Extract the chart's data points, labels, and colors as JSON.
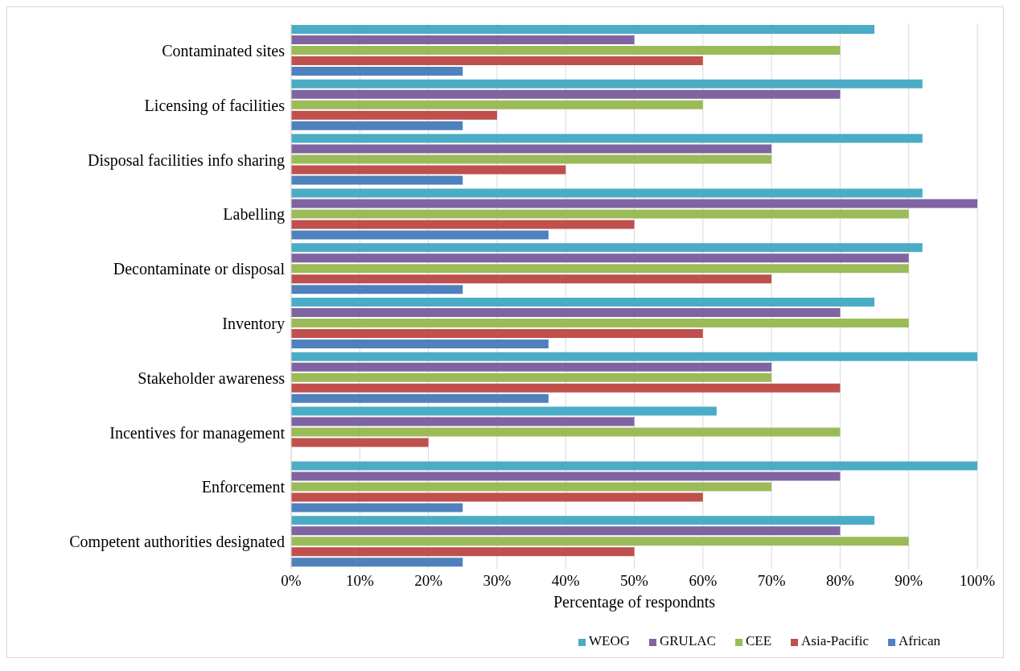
{
  "chart_data": {
    "type": "bar",
    "orientation": "horizontal",
    "xlabel": "Percentage  of respondnts",
    "categories": [
      "Contaminated sites",
      "Licensing of facilities",
      "Disposal facilities info sharing",
      "Labelling",
      "Decontaminate or disposal",
      "Inventory",
      "Stakeholder awareness",
      "Incentives for management",
      "Enforcement",
      "Competent authorities designated"
    ],
    "series": [
      {
        "name": "WEOG",
        "color": "#4bacc6",
        "values": [
          85,
          92,
          92,
          92,
          92,
          85,
          100,
          62,
          100,
          85
        ]
      },
      {
        "name": "GRULAC",
        "color": "#8064a2",
        "values": [
          50,
          80,
          70,
          100,
          90,
          80,
          70,
          50,
          80,
          80
        ]
      },
      {
        "name": "CEE",
        "color": "#9bbb59",
        "values": [
          80,
          60,
          70,
          90,
          90,
          90,
          70,
          80,
          70,
          90
        ]
      },
      {
        "name": "Asia-Pacific",
        "color": "#c0504d",
        "values": [
          60,
          30,
          40,
          50,
          70,
          60,
          80,
          20,
          60,
          50
        ]
      },
      {
        "name": "African",
        "color": "#4f81bd",
        "values": [
          25,
          25,
          25,
          37.5,
          25,
          37.5,
          37.5,
          null,
          25,
          25
        ]
      }
    ],
    "xlim": [
      0,
      100
    ],
    "xticks": [
      {
        "value": 0,
        "label": "0%"
      },
      {
        "value": 10,
        "label": "10%"
      },
      {
        "value": 20,
        "label": "20%"
      },
      {
        "value": 30,
        "label": "30%"
      },
      {
        "value": 40,
        "label": "40%"
      },
      {
        "value": 50,
        "label": "50%"
      },
      {
        "value": 60,
        "label": "60%"
      },
      {
        "value": 70,
        "label": "70%"
      },
      {
        "value": 80,
        "label": "80%"
      },
      {
        "value": 90,
        "label": "90%"
      },
      {
        "value": 100,
        "label": "100%"
      }
    ],
    "grid": "x",
    "legend": "bottom"
  }
}
